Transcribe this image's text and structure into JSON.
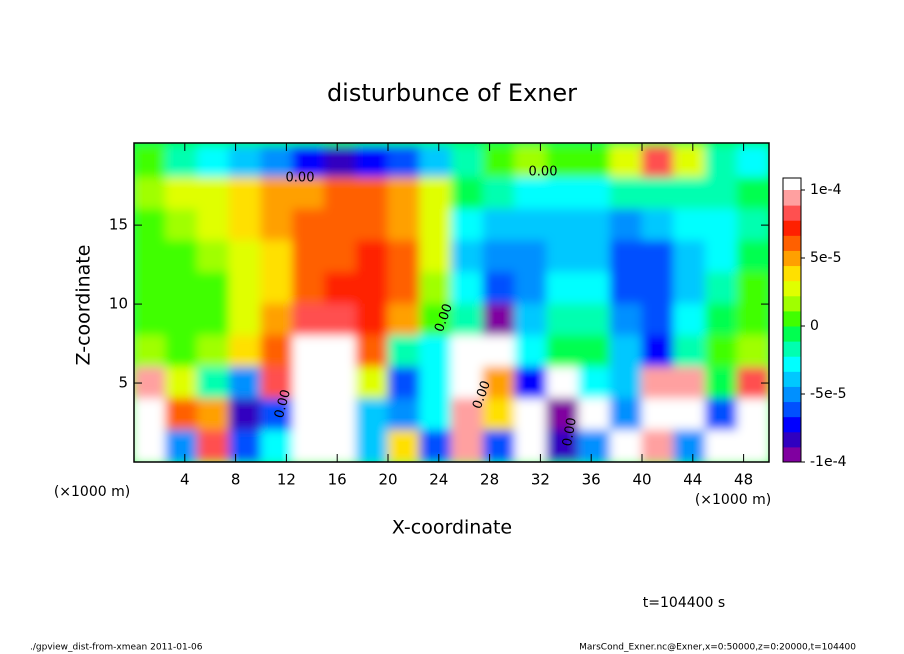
{
  "chart_data": {
    "type": "heatmap",
    "title": "disturbunce of Exner",
    "x_label": "X-coordinate",
    "y_label": "Z-coordinate",
    "x_unit_label": "(×1000 m)",
    "x_unit_label_right": "(×1000 m)",
    "time_label": "t=104400 s",
    "footer_left": "./gpview_dist-from-xmean  2011-01-06",
    "footer_right": "MarsCond_Exner.nc@Exner,x=0:50000,z=0:20000,t=104400",
    "contour_labels": [
      "0.00",
      "0.00",
      "0.00",
      "0.00",
      "0.00",
      "0.00"
    ],
    "xlim": [
      0,
      50
    ],
    "ylim": [
      0,
      20.2
    ],
    "xticks": [
      4,
      8,
      12,
      16,
      20,
      24,
      28,
      32,
      36,
      40,
      44,
      48
    ],
    "yticks": [
      5,
      10,
      15
    ],
    "x_edges": [
      0,
      2.5,
      5,
      7.5,
      10,
      12.5,
      15,
      17.5,
      20,
      22.5,
      25,
      27.5,
      30,
      32.5,
      35,
      37.5,
      40,
      42.5,
      45,
      47.5,
      50
    ],
    "y_edges": [
      20,
      18,
      16,
      14,
      12,
      10,
      8,
      6,
      4,
      2,
      0
    ],
    "z_values": [
      [
        0,
        -2e-05,
        -3e-05,
        -4e-05,
        -5e-05,
        -7e-05,
        -8e-05,
        -7e-05,
        -6e-05,
        -4e-05,
        -2e-05,
        0,
        2e-05,
        1e-05,
        0,
        3e-05,
        8e-05,
        3e-05,
        -2e-05,
        -3e-05
      ],
      [
        2e-05,
        3e-05,
        3e-05,
        4e-05,
        5e-05,
        5e-05,
        6e-05,
        6e-05,
        5e-05,
        3e-05,
        -1e-05,
        -2e-05,
        -3e-05,
        -3e-05,
        -3e-05,
        -2e-05,
        -2e-05,
        -2e-05,
        -2e-05,
        -1e-05
      ],
      [
        1e-05,
        2e-05,
        3e-05,
        4e-05,
        5e-05,
        6e-05,
        6e-05,
        6e-05,
        5e-05,
        3e-05,
        -3e-05,
        -4e-05,
        -4e-05,
        -4e-05,
        -4e-05,
        -5e-05,
        -4e-05,
        -3e-05,
        -3e-05,
        -2e-05
      ],
      [
        1e-05,
        1e-05,
        2e-05,
        3e-05,
        4e-05,
        6e-05,
        6e-05,
        7e-05,
        6e-05,
        3e-05,
        -4e-05,
        -5e-05,
        -5e-05,
        -4e-05,
        -4e-05,
        -6e-05,
        -6e-05,
        -4e-05,
        -3e-05,
        -1e-05
      ],
      [
        0,
        0,
        1e-05,
        3e-05,
        4e-05,
        6e-05,
        7e-05,
        7e-05,
        6e-05,
        2e-05,
        -3e-05,
        -6e-05,
        -5e-05,
        -3e-05,
        -3e-05,
        -6e-05,
        -6e-05,
        -4e-05,
        -2e-05,
        0
      ],
      [
        0,
        0,
        1e-05,
        3e-05,
        5e-05,
        8e-05,
        8e-05,
        7e-05,
        5e-05,
        0,
        -2e-05,
        -9e-05,
        -4e-05,
        -2e-05,
        -2e-05,
        -5e-05,
        -6e-05,
        -3e-05,
        -1e-05,
        0
      ],
      [
        2e-05,
        1e-05,
        2e-05,
        4e-05,
        6e-05,
        0.00012,
        0.00011,
        6e-05,
        -2e-05,
        -3e-05,
        0.00011,
        0.00012,
        -3e-05,
        -1e-05,
        -1e-05,
        -4e-05,
        -7e-05,
        -2e-05,
        0,
        2e-05
      ],
      [
        0.0001,
        3e-05,
        -2e-05,
        -5e-05,
        8e-05,
        0.00011,
        0.00012,
        3e-05,
        -6e-05,
        -3e-05,
        0.00011,
        5e-05,
        -7e-05,
        0.00011,
        -3e-05,
        -4e-05,
        0.0001,
        9e-05,
        -1e-05,
        8e-05
      ],
      [
        0.00012,
        6e-05,
        5e-05,
        -8e-05,
        -6e-05,
        0.00011,
        0.00012,
        -4e-05,
        -5e-05,
        -3e-05,
        0.0001,
        4e-05,
        0.00012,
        -9e-05,
        0.00011,
        -5e-05,
        0.00012,
        0.00011,
        -6e-05,
        0.00012
      ],
      [
        0.00011,
        -5e-05,
        8e-05,
        -6e-05,
        -3e-05,
        0.00012,
        0.00011,
        -4e-05,
        4e-05,
        -6e-05,
        9e-05,
        -6e-05,
        0.00011,
        -8e-05,
        -5e-05,
        0.00011,
        0.0001,
        -5e-05,
        0.00012,
        0.00011
      ]
    ],
    "clim": [
      -0.0001,
      0.0001
    ],
    "cticks": [
      {
        "value": 0.0001,
        "label": "1e-4"
      },
      {
        "value": 5e-05,
        "label": "5e-5"
      },
      0,
      {
        "value": -5e-05,
        "label": "-5e-5"
      },
      {
        "value": -0.0001,
        "label": "-1e-4"
      }
    ],
    "colors": [
      "#8000a0",
      "#3000c0",
      "#0000ff",
      "#0050ff",
      "#0090ff",
      "#00c8ff",
      "#00ffff",
      "#00ffb0",
      "#00ff50",
      "#40ff00",
      "#a0ff00",
      "#e0ff00",
      "#ffe000",
      "#ffa000",
      "#ff6000",
      "#ff2000",
      "#ff5050",
      "#ffa0a0"
    ],
    "over_color": "#ffffff",
    "under_color": "#8000a0"
  }
}
